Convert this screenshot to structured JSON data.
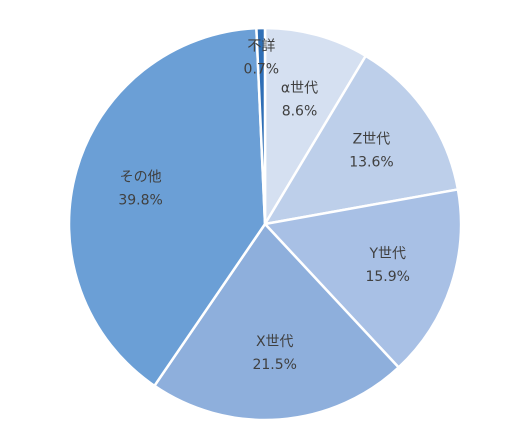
{
  "chart_data": {
    "type": "pie",
    "categories": [
      "α世代",
      "Z世代",
      "Y世代",
      "X世代",
      "その他",
      "不詳"
    ],
    "values": [
      8.6,
      13.6,
      15.9,
      21.5,
      39.8,
      0.7
    ],
    "value_labels": [
      "8.6%",
      "13.6%",
      "15.9%",
      "21.5%",
      "39.8%",
      "0.7%"
    ],
    "colors": [
      "#d5e0f1",
      "#bdcfea",
      "#a8c0e5",
      "#8eafdc",
      "#6b9fd6",
      "#2f6fb6"
    ]
  }
}
